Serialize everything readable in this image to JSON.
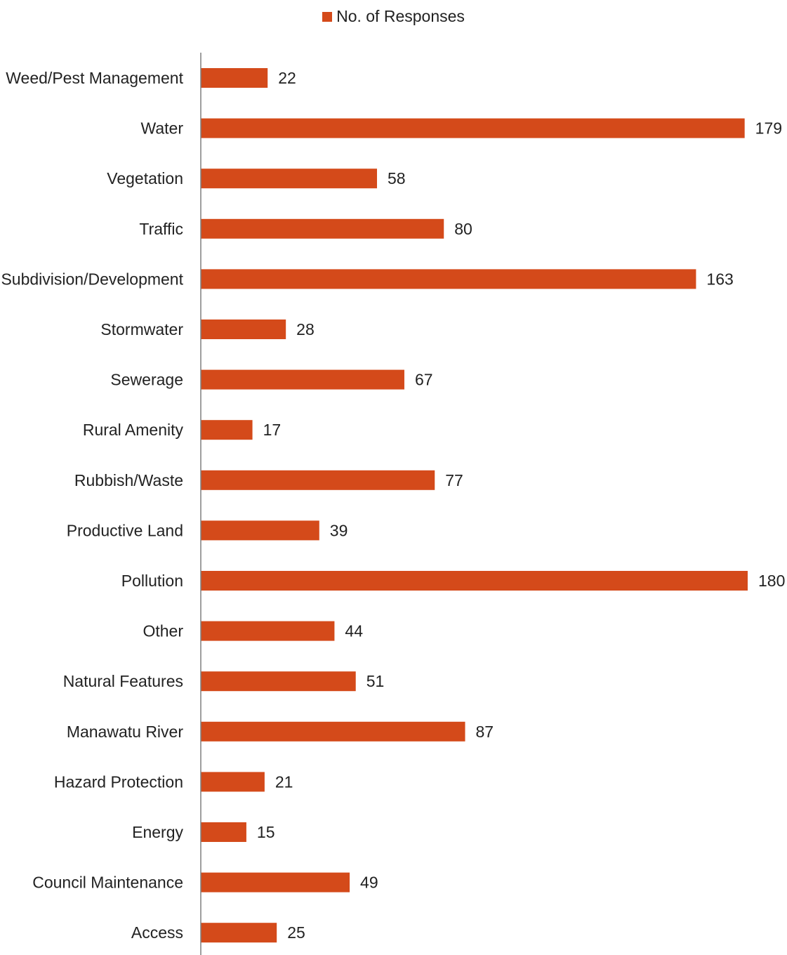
{
  "chart_data": {
    "type": "bar",
    "orientation": "horizontal",
    "categories": [
      "Weed/Pest Management",
      "Water",
      "Vegetation",
      "Traffic",
      "Subdivision/Development",
      "Stormwater",
      "Sewerage",
      "Rural Amenity",
      "Rubbish/Waste",
      "Productive Land",
      "Pollution",
      "Other",
      "Natural Features",
      "Manawatu River",
      "Hazard Protection",
      "Energy",
      "Council Maintenance",
      "Access"
    ],
    "series": [
      {
        "name": "No. of Responses",
        "color": "#d44a1a",
        "values": [
          22,
          179,
          58,
          80,
          163,
          28,
          67,
          17,
          77,
          39,
          180,
          44,
          51,
          87,
          21,
          15,
          49,
          25
        ]
      }
    ],
    "legend_position": "top-center",
    "data_labels": true,
    "grid": false,
    "xlim": [
      0,
      180
    ]
  }
}
